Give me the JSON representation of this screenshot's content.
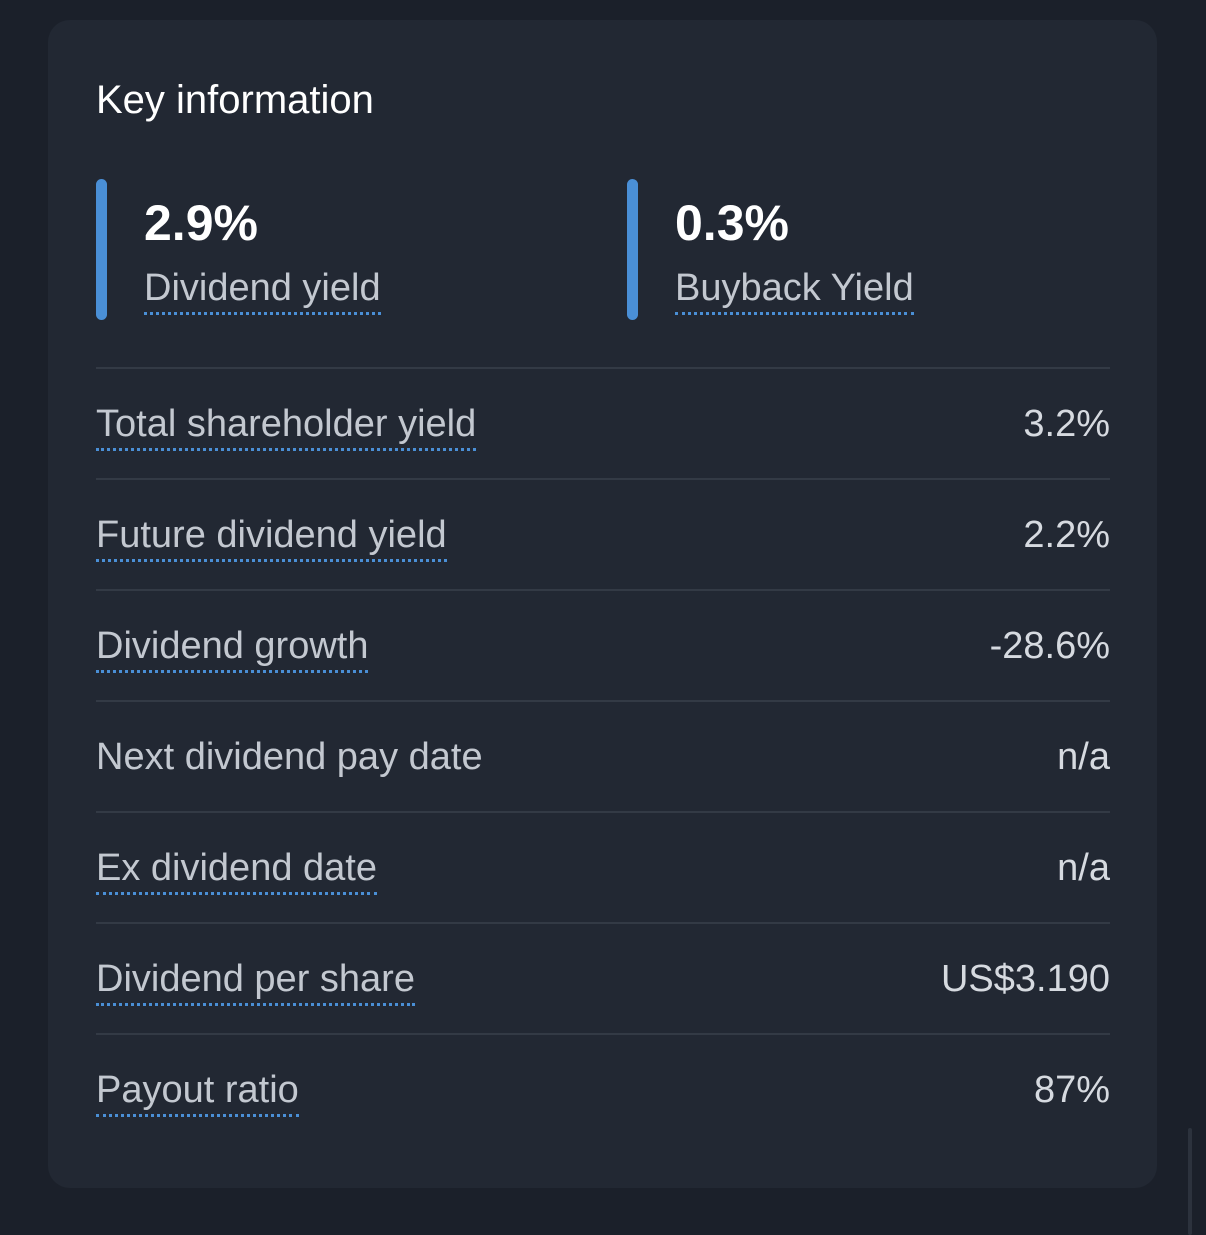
{
  "card": {
    "title": "Key information"
  },
  "highlights": [
    {
      "value": "2.9%",
      "label": "Dividend yield"
    },
    {
      "value": "0.3%",
      "label": "Buyback Yield"
    }
  ],
  "rows": [
    {
      "label": "Total shareholder yield",
      "value": "3.2%"
    },
    {
      "label": "Future dividend yield",
      "value": "2.2%"
    },
    {
      "label": "Dividend growth",
      "value": "-28.6%"
    },
    {
      "label": "Next dividend pay date",
      "value": "n/a"
    },
    {
      "label": "Ex dividend date",
      "value": "n/a"
    },
    {
      "label": "Dividend per share",
      "value": "US$3.190"
    },
    {
      "label": "Payout ratio",
      "value": "87%"
    }
  ],
  "colors": {
    "accent": "#4a8fd6",
    "card_background": "#222833",
    "page_background": "#1b202a"
  }
}
